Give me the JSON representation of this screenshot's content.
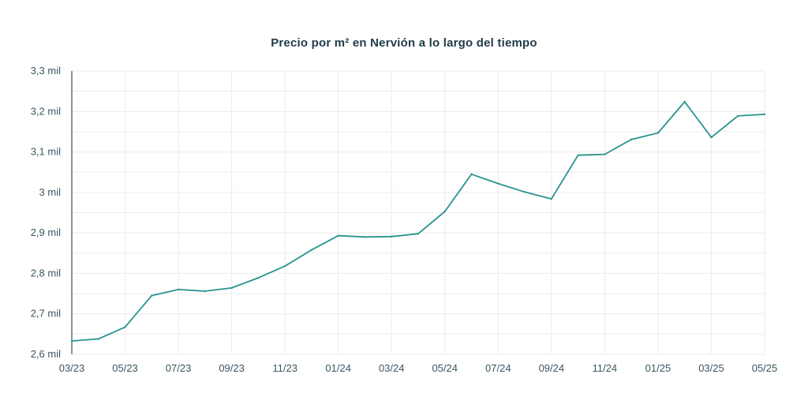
{
  "chart_data": {
    "type": "line",
    "title": "Precio por m² en Nervión a lo largo del tiempo",
    "xlabel": "",
    "ylabel": "",
    "x": [
      "03/23",
      "04/23",
      "05/23",
      "06/23",
      "07/23",
      "08/23",
      "09/23",
      "10/23",
      "11/23",
      "12/23",
      "01/24",
      "02/24",
      "03/24",
      "04/24",
      "05/24",
      "06/24",
      "07/24",
      "08/24",
      "09/24",
      "10/24",
      "11/24",
      "12/24",
      "01/25",
      "02/25",
      "03/25",
      "04/25",
      "05/25"
    ],
    "x_tick_labels": [
      "03/23",
      "05/23",
      "07/23",
      "09/23",
      "11/23",
      "01/24",
      "03/24",
      "05/24",
      "07/24",
      "09/24",
      "11/24",
      "01/25",
      "03/25",
      "05/25"
    ],
    "series": [
      {
        "values": [
          2633,
          2638,
          2667,
          2745,
          2760,
          2756,
          2764,
          2789,
          2818,
          2858,
          2893,
          2890,
          2891,
          2898,
          2953,
          3045,
          3022,
          3001,
          2984,
          3092,
          3094,
          3131,
          3147,
          3224,
          3136,
          3189,
          3193
        ]
      }
    ],
    "ylim": [
      2600,
      3300
    ],
    "y_ticks": [
      2600,
      2700,
      2800,
      2900,
      3000,
      3100,
      3200,
      3300
    ],
    "y_tick_labels": [
      "2,6 mil",
      "2,7 mil",
      "2,8 mil",
      "2,9 mil",
      "3 mil",
      "3,1 mil",
      "3,2 mil",
      "3,3 mil"
    ],
    "grid": true,
    "line_color": "#2a9490",
    "grid_color": "#ececec",
    "axis_color": "#37505c"
  }
}
